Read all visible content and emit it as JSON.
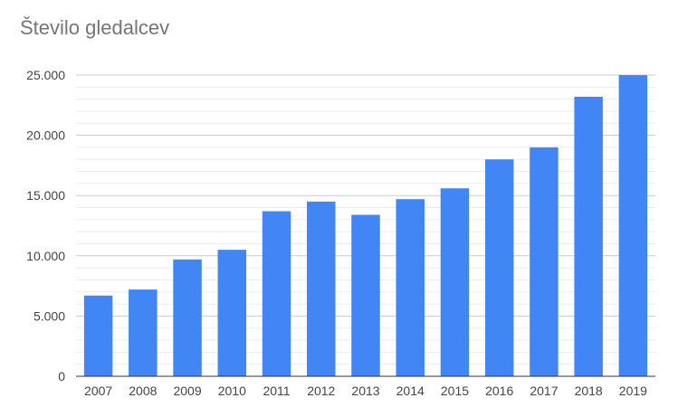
{
  "chart_data": {
    "type": "bar",
    "title": "Število gledalcev",
    "categories": [
      "2007",
      "2008",
      "2009",
      "2010",
      "2011",
      "2012",
      "2013",
      "2014",
      "2015",
      "2016",
      "2017",
      "2018",
      "2019"
    ],
    "series": [
      {
        "values": [
          6700,
          7200,
          9700,
          10500,
          13700,
          14500,
          13400,
          14700,
          15600,
          18000,
          19000,
          23200,
          25000
        ]
      }
    ],
    "ylim": [
      0,
      25000
    ],
    "yticks": [
      0,
      5000,
      10000,
      15000,
      20000,
      25000
    ],
    "ytick_labels": [
      "0",
      "5.000",
      "10.000",
      "15.000",
      "20.000",
      "25.000"
    ],
    "grid": true,
    "minor_grid": true,
    "colors": {
      "bar": "#4285f4",
      "grid_major": "#cccccc",
      "grid_minor": "#ebebeb",
      "axis": "#333333"
    }
  }
}
